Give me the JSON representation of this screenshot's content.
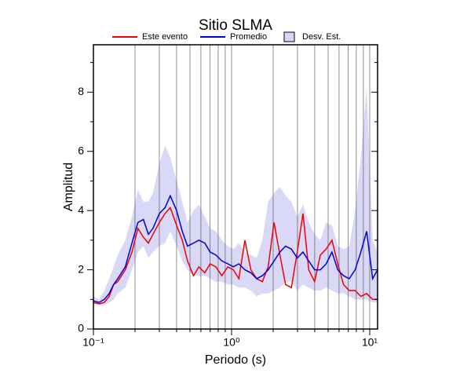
{
  "chart_data": {
    "type": "line",
    "title": "Sitio SLMA",
    "x_label": "Periodo (s)",
    "y_label": "Amplitud",
    "x_scale": "log",
    "xlim": [
      0.1,
      11.4
    ],
    "ylim": [
      0,
      9.6
    ],
    "xticks": [
      {
        "value": 0.1,
        "label": "10⁻¹"
      },
      {
        "value": 1,
        "label": "10⁰"
      },
      {
        "value": 10,
        "label": "10¹"
      }
    ],
    "xminorticks": [
      0.2,
      0.3,
      0.4,
      0.5,
      0.6,
      0.7,
      0.8,
      0.9,
      2,
      3,
      4,
      5,
      6,
      7,
      8,
      9
    ],
    "yticks": [
      0,
      2,
      4,
      6,
      8
    ],
    "yminorticks": [
      1,
      3,
      5,
      7,
      9
    ],
    "grid": "x",
    "legend": "top",
    "x": [
      0.1,
      0.11,
      0.12,
      0.13,
      0.14,
      0.15,
      0.17,
      0.19,
      0.21,
      0.23,
      0.25,
      0.27,
      0.3,
      0.33,
      0.36,
      0.4,
      0.44,
      0.48,
      0.53,
      0.58,
      0.64,
      0.7,
      0.77,
      0.85,
      0.94,
      1.03,
      1.13,
      1.25,
      1.38,
      1.52,
      1.67,
      1.84,
      2.03,
      2.24,
      2.46,
      2.71,
      2.99,
      3.29,
      3.62,
      3.99,
      4.39,
      4.84,
      5.33,
      5.87,
      6.46,
      7.11,
      7.84,
      8.63,
      9.5,
      10.5,
      11.4
    ],
    "series": [
      {
        "name": "Este evento",
        "color": "#ee0000",
        "kind": "line",
        "values": [
          0.9,
          0.85,
          0.9,
          1.1,
          1.5,
          1.6,
          2.0,
          2.6,
          3.4,
          3.1,
          2.9,
          3.2,
          3.6,
          3.9,
          4.1,
          3.5,
          3.0,
          2.3,
          1.8,
          2.1,
          1.9,
          2.2,
          2.1,
          1.8,
          2.1,
          2.0,
          1.7,
          3.0,
          2.0,
          1.7,
          1.6,
          2.1,
          3.6,
          2.5,
          1.5,
          1.4,
          2.6,
          3.9,
          2.0,
          1.6,
          2.5,
          2.7,
          3.0,
          2.2,
          1.5,
          1.3,
          1.3,
          1.1,
          1.2,
          1.0,
          1.0
        ]
      },
      {
        "name": "Promedio",
        "color": "#0000dd",
        "kind": "line",
        "values": [
          0.95,
          0.9,
          1.0,
          1.2,
          1.5,
          1.7,
          2.1,
          2.9,
          3.6,
          3.7,
          3.2,
          3.4,
          3.9,
          4.1,
          4.5,
          4.0,
          3.3,
          2.8,
          2.9,
          3.0,
          2.9,
          2.6,
          2.5,
          2.3,
          2.2,
          2.1,
          2.2,
          2.0,
          1.9,
          1.7,
          1.8,
          2.0,
          2.3,
          2.6,
          2.8,
          2.7,
          2.4,
          2.6,
          2.3,
          2.0,
          2.0,
          2.2,
          2.6,
          2.0,
          1.8,
          1.7,
          2.0,
          2.6,
          3.3,
          1.7,
          2.0
        ]
      },
      {
        "name": "Desv. Est.",
        "color": "#d9d9f7",
        "kind": "band",
        "lower": [
          0.85,
          0.8,
          0.8,
          0.9,
          1.0,
          1.2,
          1.4,
          2.0,
          2.6,
          2.8,
          2.4,
          2.6,
          2.8,
          2.9,
          3.3,
          2.8,
          2.3,
          2.0,
          1.8,
          1.8,
          1.8,
          1.7,
          1.6,
          1.6,
          1.5,
          1.5,
          1.4,
          1.4,
          1.3,
          1.1,
          1.2,
          1.2,
          1.3,
          1.4,
          1.6,
          1.6,
          1.3,
          1.5,
          1.4,
          1.3,
          1.3,
          1.4,
          1.3,
          1.2,
          1.2,
          1.1,
          1.0,
          1.0,
          1.0,
          0.9,
          0.9
        ],
        "upper": [
          1.1,
          1.0,
          1.3,
          1.7,
          2.1,
          2.5,
          3.0,
          3.8,
          4.7,
          4.3,
          4.3,
          4.6,
          5.6,
          6.2,
          5.8,
          5.0,
          4.3,
          3.6,
          4.0,
          4.2,
          3.8,
          3.4,
          3.3,
          3.0,
          2.8,
          2.7,
          2.9,
          2.6,
          2.5,
          2.4,
          3.0,
          4.3,
          4.6,
          4.8,
          4.5,
          4.3,
          3.8,
          4.2,
          3.6,
          3.2,
          3.0,
          3.6,
          3.5,
          2.8,
          2.7,
          2.8,
          4.0,
          5.8,
          8.2,
          3.0,
          2.6
        ]
      }
    ]
  }
}
